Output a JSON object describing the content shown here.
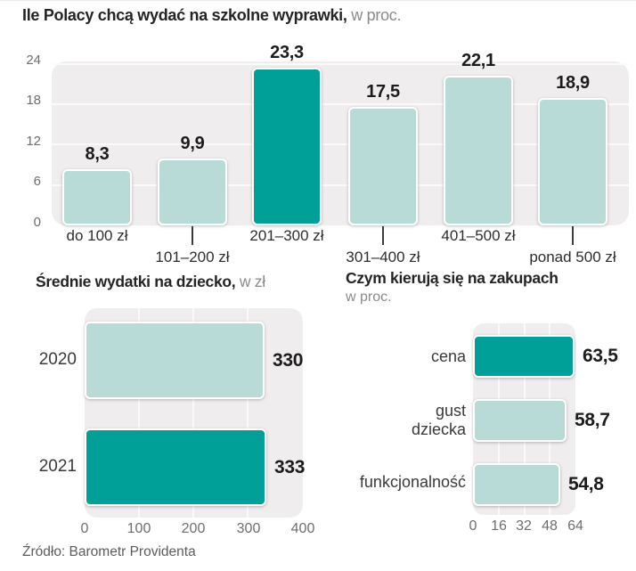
{
  "titles": {
    "main_bold": "Ile Polacy chcą wydać na szkolne wyprawki,",
    "main_unit": "w proc.",
    "avg_bold": "Średnie wydatki na dziecko,",
    "avg_unit": "w zł",
    "criteria_bold": "Czym kierują się na zakupach",
    "criteria_unit": "w proc."
  },
  "source": "Źródło: Barometr Providenta",
  "colors": {
    "accent": "#00a099",
    "accent_light": "#b9dbd7",
    "plot_bg": "#f0edef"
  },
  "chart_data": [
    {
      "type": "bar",
      "title": "Ile Polacy chcą wydać na szkolne wyprawki, w proc.",
      "categories": [
        "do 100 zł",
        "101–200 zł",
        "201–300 zł",
        "301–400 zł",
        "401–500 zł",
        "ponad 500 zł"
      ],
      "values": [
        8.3,
        9.9,
        23.3,
        17.5,
        22.1,
        18.9
      ],
      "value_labels": [
        "8,3",
        "9,9",
        "23,3",
        "17,5",
        "22,1",
        "18,9"
      ],
      "highlight_index": 2,
      "yticks": [
        0,
        6,
        12,
        18,
        24
      ],
      "ylim": [
        0,
        24
      ],
      "grid": true,
      "legend": "none"
    },
    {
      "type": "bar",
      "orientation": "horizontal",
      "title": "Średnie wydatki na dziecko, w zł",
      "categories": [
        "2020",
        "2021"
      ],
      "values": [
        330,
        333
      ],
      "value_labels": [
        "330",
        "333"
      ],
      "highlight_index": 1,
      "xticks": [
        0,
        100,
        200,
        300,
        400
      ],
      "xlim": [
        0,
        400
      ],
      "grid": true,
      "legend": "none"
    },
    {
      "type": "bar",
      "orientation": "horizontal",
      "title": "Czym kierują się na zakupach, w proc.",
      "categories": [
        "cena",
        "gust dziecka",
        "funkcjonalność"
      ],
      "values": [
        63.5,
        58.7,
        54.8
      ],
      "value_labels": [
        "63,5",
        "58,7",
        "54,8"
      ],
      "highlight_index": 0,
      "xticks": [
        0,
        16,
        32,
        48,
        64
      ],
      "xlim": [
        0,
        64
      ],
      "grid": true,
      "legend": "none"
    }
  ]
}
